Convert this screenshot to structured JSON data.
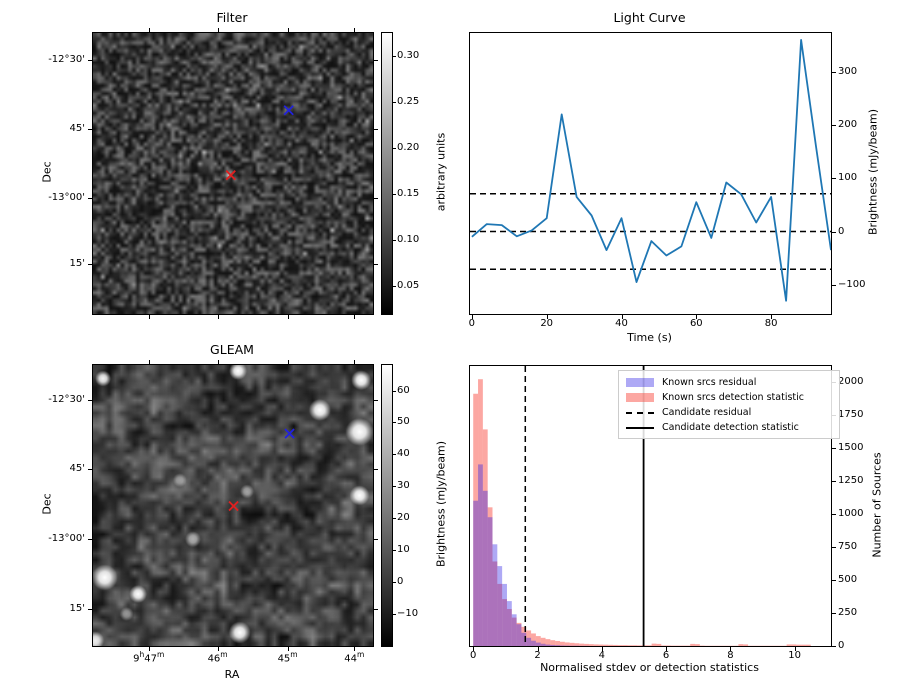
{
  "figure": {
    "background": "#ffffff"
  },
  "chart_data": [
    {
      "id": "filter",
      "type": "heatmap",
      "title": "Filter",
      "ylabel": "Dec",
      "ytick_labels": [
        "-12°30'",
        "45'",
        "-13°00'",
        "15'"
      ],
      "ytick_positions": [
        0.096,
        0.343,
        0.586,
        0.823
      ],
      "xtick_positions": [
        0.199,
        0.445,
        0.695,
        0.933
      ],
      "colorbar": {
        "label": "arbitrary units",
        "tick_labels": [
          "0.05",
          "0.10",
          "0.15",
          "0.20",
          "0.25",
          "0.30"
        ],
        "tick_values": [
          0.05,
          0.1,
          0.15,
          0.2,
          0.25,
          0.3
        ],
        "vmin": 0.02,
        "vmax": 0.325,
        "cmap": "gray"
      },
      "markers": [
        {
          "name": "candidate-marker",
          "shape": "x",
          "color": "#2222dd",
          "x": 0.699,
          "y": 0.275
        },
        {
          "name": "known-source-marker",
          "shape": "x",
          "color": "#e02020",
          "x": 0.492,
          "y": 0.506
        }
      ],
      "noise": {
        "seed": 42,
        "cells": 72,
        "style": "fine-grain"
      }
    },
    {
      "id": "light_curve",
      "type": "line",
      "title": "Light Curve",
      "xlabel": "Time (s)",
      "ylabel": "Brightness (mJy/beam)",
      "line_color": "#1f77b4",
      "x": [
        0,
        4,
        8,
        12,
        16,
        20,
        24,
        28,
        32,
        36,
        40,
        44,
        48,
        52,
        56,
        60,
        64,
        68,
        72,
        76,
        80,
        84,
        88,
        92,
        96
      ],
      "y": [
        -10,
        14,
        12,
        -9,
        2,
        25,
        220,
        65,
        30,
        -35,
        25,
        -95,
        -18,
        -45,
        -28,
        55,
        -12,
        92,
        70,
        17,
        65,
        -130,
        360,
        160,
        -35
      ],
      "hlines": [
        71,
        0,
        -71
      ],
      "hline_style": "dashed",
      "xticks": [
        0,
        20,
        40,
        60,
        80
      ],
      "xtick_labels": [
        "0",
        "20",
        "40",
        "60",
        "80"
      ],
      "yticks": [
        -100,
        0,
        100,
        200,
        300
      ],
      "ytick_labels": [
        "−100",
        "0",
        "100",
        "200",
        "300"
      ],
      "xlim": [
        -0.5,
        96
      ],
      "ylim": [
        -155,
        373
      ],
      "yaxis_side": "right"
    },
    {
      "id": "gleam",
      "type": "heatmap",
      "title": "GLEAM",
      "xlabel": "RA",
      "ylabel": "Dec",
      "xtick_labels": [
        "9h47m",
        "46m",
        "45m",
        "44m"
      ],
      "xtick_positions": [
        0.199,
        0.445,
        0.695,
        0.933
      ],
      "ytick_labels": [
        "-12°30'",
        "45'",
        "-13°00'",
        "15'"
      ],
      "ytick_positions": [
        0.126,
        0.369,
        0.619,
        0.869
      ],
      "colorbar": {
        "label": "Brightness (mJy/beam)",
        "tick_labels": [
          "−10",
          "0",
          "10",
          "20",
          "30",
          "40",
          "50",
          "60"
        ],
        "tick_values": [
          -10,
          0,
          10,
          20,
          30,
          40,
          50,
          60
        ],
        "vmin": -20,
        "vmax": 68,
        "cmap": "gray"
      },
      "markers": [
        {
          "name": "candidate-marker",
          "shape": "x",
          "color": "#2222dd",
          "x": 0.702,
          "y": 0.244
        },
        {
          "name": "known-source-marker",
          "shape": "x",
          "color": "#e02020",
          "x": 0.502,
          "y": 0.502
        }
      ],
      "bright_sources": [
        {
          "x": 0.036,
          "y": 0.048,
          "r": 8,
          "a": 0.95
        },
        {
          "x": 0.518,
          "y": 0.021,
          "r": 9,
          "a": 1
        },
        {
          "x": 0.958,
          "y": 0.054,
          "r": 10,
          "a": 1
        },
        {
          "x": 0.81,
          "y": 0.16,
          "r": 11,
          "a": 1
        },
        {
          "x": 0.952,
          "y": 0.238,
          "r": 14,
          "a": 1
        },
        {
          "x": 0.952,
          "y": 0.464,
          "r": 10,
          "a": 1
        },
        {
          "x": 0.042,
          "y": 0.756,
          "r": 13,
          "a": 1
        },
        {
          "x": 0.161,
          "y": 0.815,
          "r": 9,
          "a": 1
        },
        {
          "x": 0.524,
          "y": 0.952,
          "r": 11,
          "a": 1
        },
        {
          "x": 0.008,
          "y": 0.98,
          "r": 9,
          "a": 0.9
        },
        {
          "x": 0.31,
          "y": 0.41,
          "r": 7,
          "a": 0.5
        },
        {
          "x": 0.55,
          "y": 0.45,
          "r": 7,
          "a": 0.55
        },
        {
          "x": 0.357,
          "y": 0.62,
          "r": 8,
          "a": 0.6
        },
        {
          "x": 0.12,
          "y": 0.886,
          "r": 7,
          "a": 0.5
        }
      ],
      "noise": {
        "seed": 7,
        "style": "smooth-blobs"
      }
    },
    {
      "id": "histogram",
      "type": "bar",
      "xlabel": "Normalised stdev or detection statistics",
      "ylabel": "Number of Sources",
      "bin_start": 0,
      "bin_width": 0.15,
      "series": [
        {
          "name": "Known srcs residual",
          "color": "#2a1ee6",
          "alpha": 0.38,
          "values": [
            1100,
            1375,
            1175,
            975,
            770,
            605,
            470,
            340,
            240,
            165,
            100,
            62,
            40,
            26,
            17,
            11,
            8,
            6,
            4,
            3,
            2,
            2,
            1,
            1
          ]
        },
        {
          "name": "Known srcs detection statistic",
          "color": "#fa5046",
          "alpha": 0.5,
          "values": [
            1910,
            2020,
            1640,
            1050,
            640,
            470,
            355,
            280,
            215,
            175,
            145,
            118,
            95,
            75,
            62,
            52,
            44,
            38,
            32,
            27,
            24,
            21,
            18,
            16,
            14,
            12,
            11,
            10,
            9,
            8,
            7,
            7,
            6,
            6,
            5,
            5,
            5,
            18,
            16,
            4,
            4,
            3,
            3,
            3,
            3,
            16,
            14,
            3,
            2,
            2,
            2,
            2,
            2,
            2,
            2,
            14,
            12,
            2,
            2,
            2,
            2,
            2,
            2,
            2,
            2,
            12,
            12,
            10,
            10,
            10
          ]
        }
      ],
      "vlines": [
        {
          "name": "Candidate residual",
          "style": "dashed",
          "x": 1.62
        },
        {
          "name": "Candidate detection statistic",
          "style": "solid",
          "x": 5.3
        }
      ],
      "xticks": [
        0,
        2,
        4,
        6,
        8,
        10
      ],
      "xtick_labels": [
        "0",
        "2",
        "4",
        "6",
        "8",
        "10"
      ],
      "yticks": [
        0,
        250,
        500,
        750,
        1000,
        1250,
        1500,
        1750,
        2000
      ],
      "ytick_labels": [
        "0",
        "250",
        "500",
        "750",
        "1000",
        "1250",
        "1500",
        "1750",
        "2000"
      ],
      "xlim": [
        -0.1,
        11.13
      ],
      "ylim": [
        0,
        2120
      ],
      "yaxis_side": "right",
      "legend": [
        {
          "label": "Known srcs residual",
          "swatch": "patch",
          "color": "rgba(42,30,230,0.38)"
        },
        {
          "label": "Known srcs detection statistic",
          "swatch": "patch",
          "color": "rgba(250,80,70,0.5)"
        },
        {
          "label": "Candidate residual",
          "swatch": "dashed-line"
        },
        {
          "label": "Candidate detection statistic",
          "swatch": "solid-line"
        }
      ],
      "legend_position": "upper right"
    }
  ]
}
